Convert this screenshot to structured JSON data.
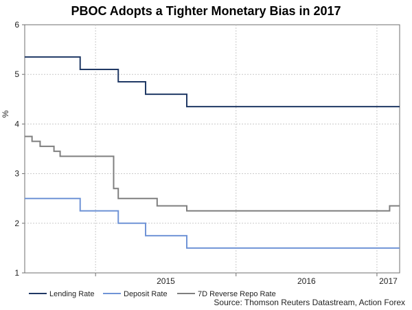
{
  "chart_data": {
    "type": "line",
    "title": "PBOC Adopts a Tighter Monetary Bias in 2017",
    "xlabel": "",
    "ylabel": "%",
    "ylim": [
      1,
      6
    ],
    "yticks": [
      "1",
      "2",
      "3",
      "4",
      "5",
      "6"
    ],
    "xlim": [
      "2014-07-01",
      "2017-03-01"
    ],
    "xtick_labels": [
      "2015",
      "2016",
      "2017"
    ],
    "grid": true,
    "legend_position": "bottom",
    "source": "Source: Thomson Reuters Datastream, Action Forex",
    "series": [
      {
        "name": "Lending Rate",
        "color": "#1f3864",
        "step": true,
        "points": [
          [
            "2014-07-01",
            5.35
          ],
          [
            "2014-11-22",
            5.1
          ],
          [
            "2015-03-01",
            4.85
          ],
          [
            "2015-05-11",
            4.6
          ],
          [
            "2015-08-26",
            4.35
          ],
          [
            "2017-03-01",
            4.35
          ]
        ]
      },
      {
        "name": "Deposit Rate",
        "color": "#6f93d6",
        "step": true,
        "points": [
          [
            "2014-07-01",
            2.5
          ],
          [
            "2014-11-22",
            2.25
          ],
          [
            "2015-03-01",
            2.0
          ],
          [
            "2015-05-11",
            1.75
          ],
          [
            "2015-08-26",
            1.5
          ],
          [
            "2017-03-01",
            1.5
          ]
        ]
      },
      {
        "name": "7D Reverse Repo Rate",
        "color": "#7f7f7f",
        "step": true,
        "points": [
          [
            "2014-07-01",
            3.75
          ],
          [
            "2014-07-20",
            3.65
          ],
          [
            "2014-08-10",
            3.55
          ],
          [
            "2014-09-15",
            3.45
          ],
          [
            "2014-10-01",
            3.35
          ],
          [
            "2015-02-17",
            2.7
          ],
          [
            "2015-03-01",
            2.5
          ],
          [
            "2015-06-10",
            2.35
          ],
          [
            "2015-08-26",
            2.25
          ],
          [
            "2017-02-03",
            2.35
          ],
          [
            "2017-03-01",
            2.35
          ]
        ]
      }
    ]
  }
}
